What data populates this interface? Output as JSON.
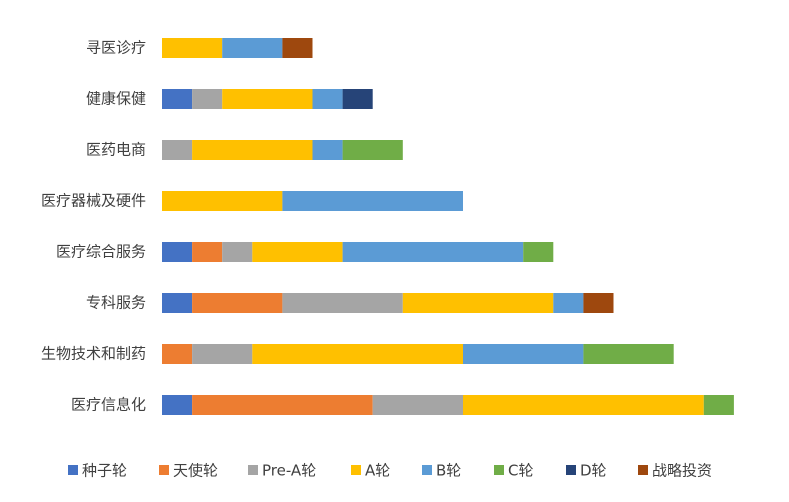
{
  "chart_data": {
    "type": "stacked-bar-horizontal",
    "categories": [
      "寻医诊疗",
      "健康保健",
      "医药电商",
      "医疗器械及硬件",
      "医疗综合服务",
      "专科服务",
      "生物技术和制药",
      "医疗信息化"
    ],
    "series": [
      {
        "name": "种子轮",
        "color": "#4472c4",
        "values": [
          0,
          1,
          0,
          0,
          1,
          1,
          0,
          1
        ]
      },
      {
        "name": "天使轮",
        "color": "#ed7d31",
        "values": [
          0,
          0,
          0,
          0,
          1,
          3,
          1,
          6
        ]
      },
      {
        "name": "Pre-A轮",
        "color": "#a5a5a5",
        "values": [
          0,
          1,
          1,
          0,
          1,
          4,
          2,
          3
        ]
      },
      {
        "name": "A轮",
        "color": "#ffc000",
        "values": [
          2,
          3,
          4,
          4,
          3,
          5,
          7,
          8
        ]
      },
      {
        "name": "B轮",
        "color": "#5b9bd5",
        "values": [
          2,
          1,
          1,
          6,
          6,
          1,
          4,
          0
        ]
      },
      {
        "name": "C轮",
        "color": "#70ad47",
        "values": [
          0,
          0,
          2,
          0,
          1,
          0,
          3,
          1
        ]
      },
      {
        "name": "D轮",
        "color": "#264478",
        "values": [
          0,
          1,
          0,
          0,
          0,
          0,
          0,
          0
        ]
      },
      {
        "name": "战略投资",
        "color": "#9e480e",
        "values": [
          1,
          0,
          0,
          0,
          0,
          1,
          0,
          0
        ]
      }
    ],
    "legend": "bottom"
  }
}
